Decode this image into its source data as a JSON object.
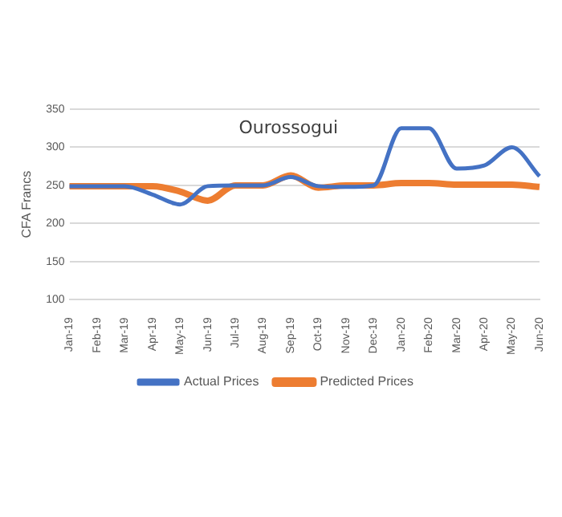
{
  "chart_data": {
    "type": "line",
    "title": "Ourossogui",
    "ylabel": "CFA Francs",
    "categories": [
      "Jan-19",
      "Feb-19",
      "Mar-19",
      "Apr-19",
      "May-19",
      "Jun-19",
      "Jul-19",
      "Aug-19",
      "Sep-19",
      "Oct-19",
      "Nov-19",
      "Dec-19",
      "Jan-20",
      "Feb-20",
      "Mar-20",
      "Apr-20",
      "May-20",
      "Jun-20"
    ],
    "series": [
      {
        "name": "Actual Prices",
        "color": "#4472c4",
        "values": [
          249,
          249,
          249,
          238,
          225,
          249,
          250,
          250,
          261,
          249,
          248,
          250,
          325,
          325,
          272,
          276,
          300,
          262
        ]
      },
      {
        "name": "Predicted Prices",
        "color": "#ed7d31",
        "values": [
          249,
          249,
          249,
          249,
          242,
          230,
          250,
          250,
          263,
          247,
          250,
          250,
          253,
          253,
          251,
          251,
          251,
          248
        ]
      }
    ],
    "ylim": [
      100,
      350
    ],
    "yticks": [
      100,
      150,
      200,
      250,
      300,
      350
    ],
    "grid": "y",
    "legend": "bottom",
    "marker": "none",
    "line_style": "solid"
  }
}
